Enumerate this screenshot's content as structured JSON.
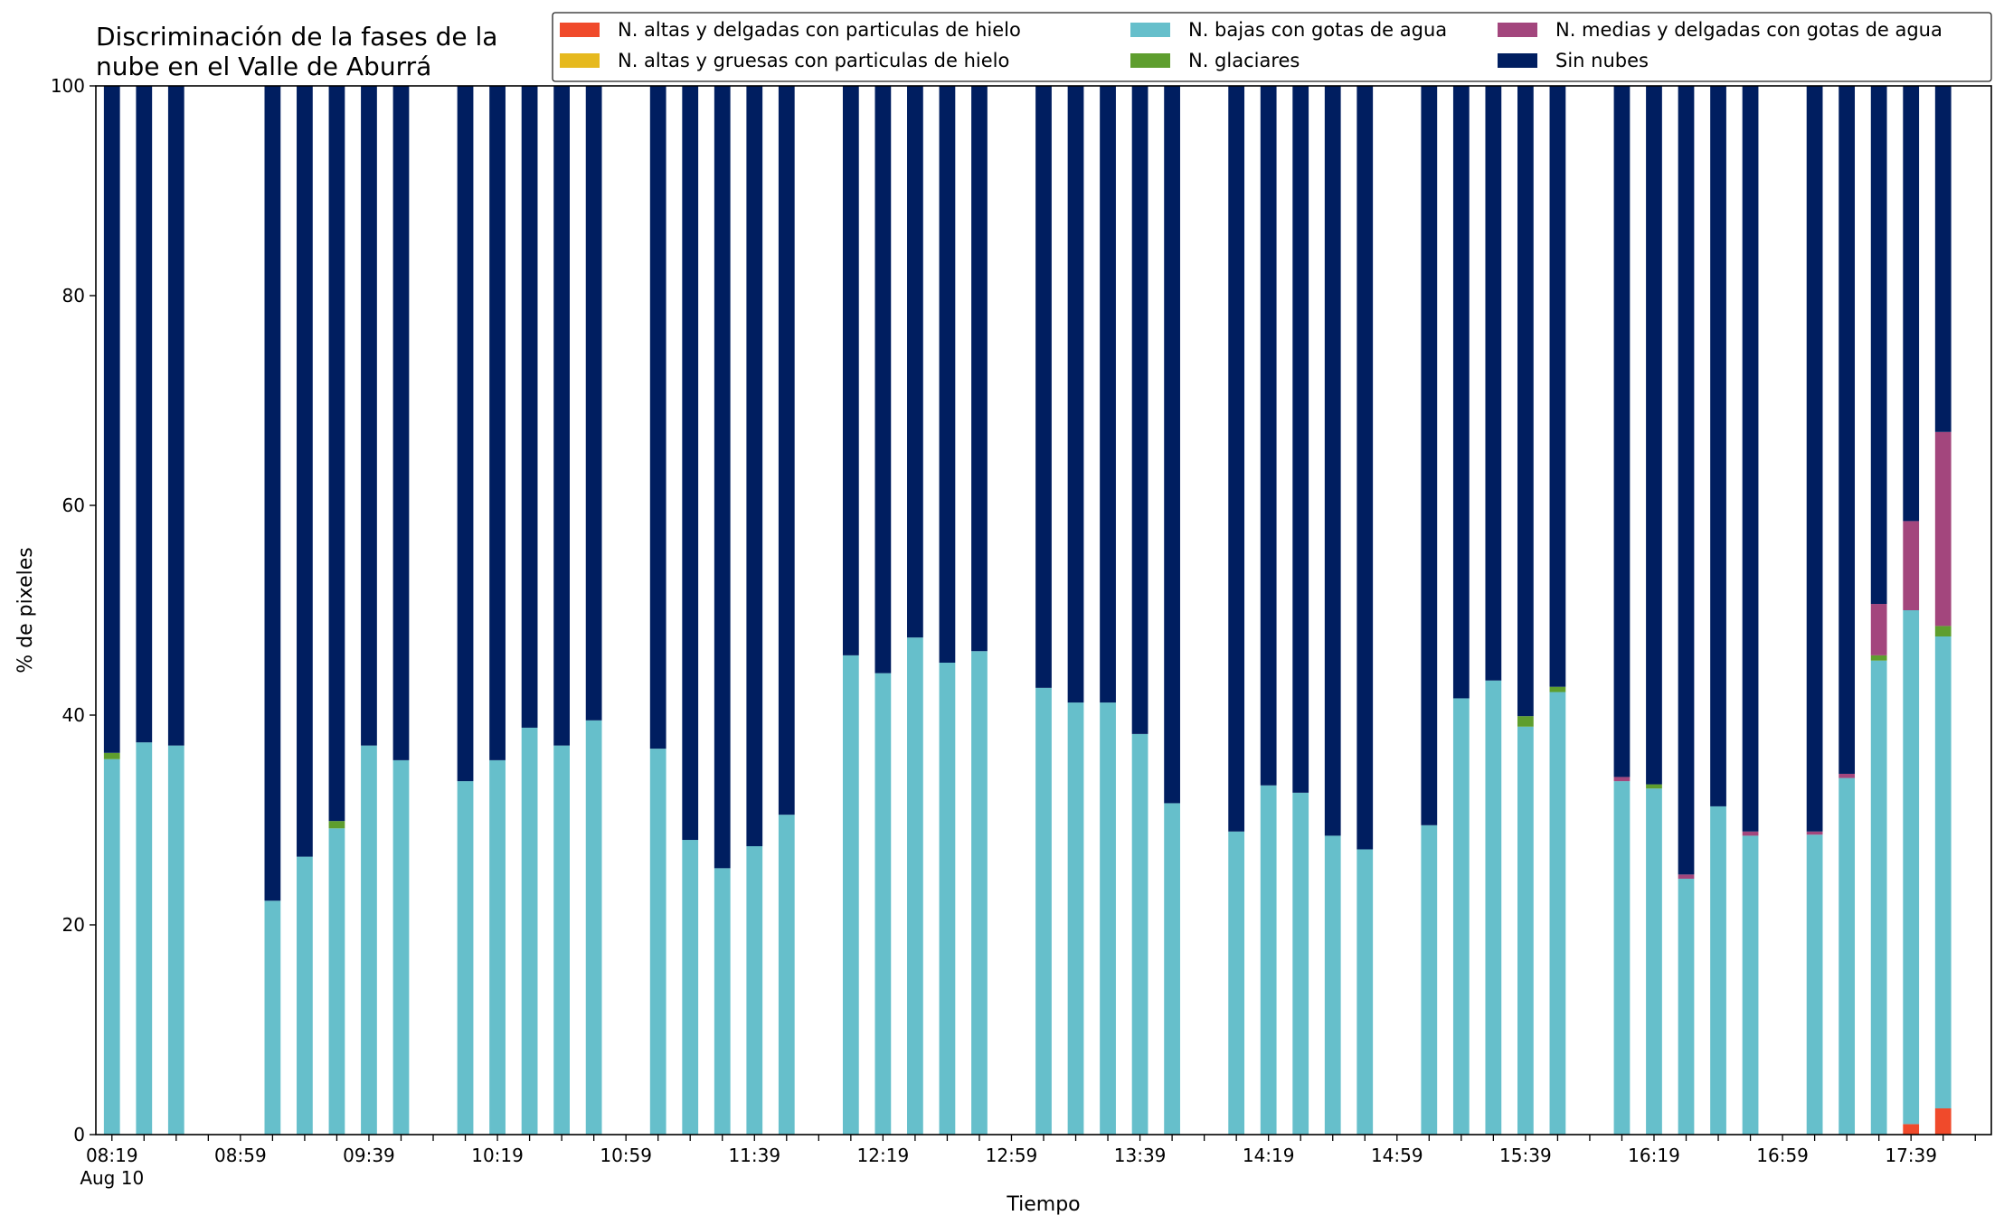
{
  "chart_data": {
    "type": "bar",
    "stacked": true,
    "title_lines": [
      "Discriminación de la fases de la",
      "nube en el Valle de Aburrá"
    ],
    "xlabel": "Tiempo",
    "ylabel": "% de pixeles",
    "ylim": [
      0,
      100
    ],
    "yticks": [
      "0",
      "20",
      "40",
      "60",
      "80",
      "100"
    ],
    "x_slot_count": 59,
    "x_slot_minutes": 10,
    "x_start": "08:19",
    "x_end": "18:09",
    "xtick_labels": [
      {
        "slot": 0,
        "label": "08:19",
        "sub": "Aug 10"
      },
      {
        "slot": 4,
        "label": "08:59"
      },
      {
        "slot": 8,
        "label": "09:39"
      },
      {
        "slot": 12,
        "label": "10:19"
      },
      {
        "slot": 16,
        "label": "10:59"
      },
      {
        "slot": 20,
        "label": "11:39"
      },
      {
        "slot": 24,
        "label": "12:19"
      },
      {
        "slot": 28,
        "label": "12:59"
      },
      {
        "slot": 32,
        "label": "13:39"
      },
      {
        "slot": 36,
        "label": "14:19"
      },
      {
        "slot": 40,
        "label": "14:59"
      },
      {
        "slot": 44,
        "label": "15:39"
      },
      {
        "slot": 48,
        "label": "16:19"
      },
      {
        "slot": 52,
        "label": "16:59"
      },
      {
        "slot": 56,
        "label": "17:39"
      }
    ],
    "grid": false,
    "legend_placement": "top-right",
    "legend_columns": 3,
    "series": [
      {
        "name": "N. altas y delgadas con particulas de hielo",
        "color": "#f04a2b"
      },
      {
        "name": "N. altas y gruesas con particulas de hielo",
        "color": "#e6b91e"
      },
      {
        "name": "N. bajas con gotas de agua",
        "color": "#66bfcb"
      },
      {
        "name": "N. glaciares",
        "color": "#5e9e2e"
      },
      {
        "name": "N. medias y delgadas con gotas de agua",
        "color": "#a3467d"
      },
      {
        "name": "Sin nubes",
        "color": "#001e60"
      }
    ],
    "bars": [
      {
        "slot": 0,
        "time": "08:19",
        "values": [
          0,
          0,
          35.8,
          0.6,
          0,
          63.6
        ]
      },
      {
        "slot": 1,
        "time": "08:29",
        "values": [
          0,
          0,
          37.4,
          0,
          0,
          62.6
        ]
      },
      {
        "slot": 2,
        "time": "08:39",
        "values": [
          0,
          0,
          37.1,
          0,
          0,
          62.9
        ]
      },
      {
        "slot": 5,
        "time": "09:09",
        "values": [
          0,
          0,
          22.3,
          0,
          0,
          77.7
        ]
      },
      {
        "slot": 6,
        "time": "09:19",
        "values": [
          0,
          0,
          26.5,
          0,
          0,
          73.5
        ]
      },
      {
        "slot": 7,
        "time": "09:29",
        "values": [
          0,
          0,
          29.2,
          0.7,
          0,
          70.1
        ]
      },
      {
        "slot": 8,
        "time": "09:39",
        "values": [
          0,
          0,
          37.1,
          0,
          0,
          62.9
        ]
      },
      {
        "slot": 9,
        "time": "09:49",
        "values": [
          0,
          0,
          35.7,
          0,
          0,
          64.3
        ]
      },
      {
        "slot": 11,
        "time": "10:09",
        "values": [
          0,
          0,
          33.7,
          0,
          0,
          66.3
        ]
      },
      {
        "slot": 12,
        "time": "10:19",
        "values": [
          0,
          0,
          35.7,
          0,
          0,
          64.3
        ]
      },
      {
        "slot": 13,
        "time": "10:29",
        "values": [
          0,
          0,
          38.8,
          0,
          0,
          61.2
        ]
      },
      {
        "slot": 14,
        "time": "10:39",
        "values": [
          0,
          0,
          37.1,
          0,
          0,
          62.9
        ]
      },
      {
        "slot": 15,
        "time": "10:49",
        "values": [
          0,
          0,
          39.5,
          0,
          0,
          60.5
        ]
      },
      {
        "slot": 17,
        "time": "11:09",
        "values": [
          0,
          0,
          36.8,
          0,
          0,
          63.2
        ]
      },
      {
        "slot": 18,
        "time": "11:19",
        "values": [
          0,
          0,
          28.1,
          0,
          0,
          71.9
        ]
      },
      {
        "slot": 19,
        "time": "11:29",
        "values": [
          0,
          0,
          25.4,
          0,
          0,
          74.6
        ]
      },
      {
        "slot": 20,
        "time": "11:39",
        "values": [
          0,
          0,
          27.5,
          0,
          0,
          72.5
        ]
      },
      {
        "slot": 21,
        "time": "11:49",
        "values": [
          0,
          0,
          30.5,
          0,
          0,
          69.5
        ]
      },
      {
        "slot": 23,
        "time": "12:09",
        "values": [
          0,
          0,
          45.7,
          0,
          0,
          54.3
        ]
      },
      {
        "slot": 24,
        "time": "12:19",
        "values": [
          0,
          0,
          44.0,
          0,
          0,
          56.0
        ]
      },
      {
        "slot": 25,
        "time": "12:29",
        "values": [
          0,
          0,
          47.4,
          0,
          0,
          52.6
        ]
      },
      {
        "slot": 26,
        "time": "12:39",
        "values": [
          0,
          0,
          45.0,
          0,
          0,
          55.0
        ]
      },
      {
        "slot": 27,
        "time": "12:49",
        "values": [
          0,
          0,
          46.1,
          0,
          0,
          53.9
        ]
      },
      {
        "slot": 29,
        "time": "13:09",
        "values": [
          0,
          0,
          42.6,
          0,
          0,
          57.4
        ]
      },
      {
        "slot": 30,
        "time": "13:19",
        "values": [
          0,
          0,
          41.2,
          0,
          0,
          58.8
        ]
      },
      {
        "slot": 31,
        "time": "13:29",
        "values": [
          0,
          0,
          41.2,
          0,
          0,
          58.8
        ]
      },
      {
        "slot": 32,
        "time": "13:39",
        "values": [
          0,
          0,
          38.2,
          0,
          0,
          61.8
        ]
      },
      {
        "slot": 33,
        "time": "13:49",
        "values": [
          0,
          0,
          31.6,
          0,
          0,
          68.4
        ]
      },
      {
        "slot": 35,
        "time": "14:09",
        "values": [
          0,
          0,
          28.9,
          0,
          0,
          71.1
        ]
      },
      {
        "slot": 36,
        "time": "14:19",
        "values": [
          0,
          0,
          33.3,
          0,
          0,
          66.7
        ]
      },
      {
        "slot": 37,
        "time": "14:29",
        "values": [
          0,
          0,
          32.6,
          0,
          0,
          67.4
        ]
      },
      {
        "slot": 38,
        "time": "14:39",
        "values": [
          0,
          0,
          28.5,
          0,
          0,
          71.5
        ]
      },
      {
        "slot": 39,
        "time": "14:49",
        "values": [
          0,
          0,
          27.2,
          0,
          0,
          72.8
        ]
      },
      {
        "slot": 41,
        "time": "15:09",
        "values": [
          0,
          0,
          29.5,
          0,
          0,
          70.5
        ]
      },
      {
        "slot": 42,
        "time": "15:19",
        "values": [
          0,
          0,
          41.6,
          0,
          0,
          58.4
        ]
      },
      {
        "slot": 43,
        "time": "15:29",
        "values": [
          0,
          0,
          43.3,
          0,
          0,
          56.7
        ]
      },
      {
        "slot": 44,
        "time": "15:39",
        "values": [
          0,
          0,
          38.9,
          1.0,
          0,
          60.1
        ]
      },
      {
        "slot": 45,
        "time": "15:49",
        "values": [
          0,
          0,
          42.2,
          0.5,
          0,
          57.3
        ]
      },
      {
        "slot": 47,
        "time": "16:09",
        "values": [
          0,
          0,
          33.7,
          0,
          0.4,
          65.9
        ]
      },
      {
        "slot": 48,
        "time": "16:19",
        "values": [
          0,
          0,
          33.0,
          0.4,
          0,
          66.6
        ]
      },
      {
        "slot": 49,
        "time": "16:29",
        "values": [
          0,
          0,
          24.4,
          0,
          0.4,
          75.2
        ]
      },
      {
        "slot": 50,
        "time": "16:39",
        "values": [
          0,
          0,
          31.3,
          0,
          0,
          68.7
        ]
      },
      {
        "slot": 51,
        "time": "16:49",
        "values": [
          0,
          0,
          28.5,
          0,
          0.4,
          71.1
        ]
      },
      {
        "slot": 53,
        "time": "17:09",
        "values": [
          0,
          0,
          28.6,
          0,
          0.3,
          71.1
        ]
      },
      {
        "slot": 54,
        "time": "17:19",
        "values": [
          0,
          0,
          34.0,
          0,
          0.4,
          65.6
        ]
      },
      {
        "slot": 55,
        "time": "17:29",
        "values": [
          0,
          0,
          45.2,
          0.5,
          4.9,
          49.4
        ]
      },
      {
        "slot": 56,
        "time": "17:39",
        "values": [
          1.0,
          0,
          49.0,
          0,
          8.5,
          41.5
        ]
      },
      {
        "slot": 57,
        "time": "17:49",
        "values": [
          2.5,
          0,
          45.0,
          1.0,
          18.5,
          33.0
        ]
      }
    ]
  }
}
